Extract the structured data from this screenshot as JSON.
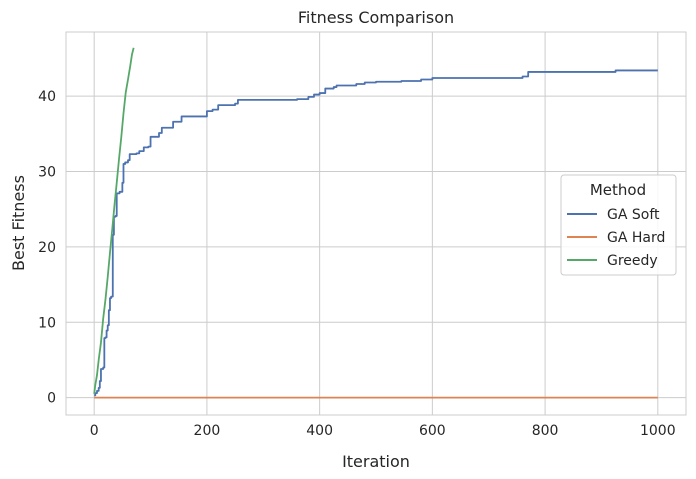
{
  "chart_data": {
    "type": "line",
    "title": "Fitness Comparison",
    "xlabel": "Iteration",
    "ylabel": "Best Fitness",
    "xlim": [
      -50,
      1050
    ],
    "ylim": [
      -2.3,
      48.5
    ],
    "xticks": [
      0,
      200,
      400,
      600,
      800,
      1000
    ],
    "yticks": [
      0,
      10,
      20,
      30,
      40
    ],
    "grid": true,
    "legend": {
      "title": "Method",
      "placement": "center-right"
    },
    "series": [
      {
        "name": "GA Soft",
        "color": "#4c72b0",
        "step": true,
        "points": [
          [
            0,
            0.3
          ],
          [
            2,
            0.6
          ],
          [
            5,
            0.9
          ],
          [
            8,
            1.3
          ],
          [
            10,
            2.2
          ],
          [
            12,
            3.8
          ],
          [
            16,
            4.0
          ],
          [
            18,
            7.9
          ],
          [
            20,
            8.0
          ],
          [
            22,
            8.9
          ],
          [
            24,
            9.6
          ],
          [
            26,
            11.6
          ],
          [
            28,
            13.2
          ],
          [
            30,
            13.4
          ],
          [
            33,
            21.6
          ],
          [
            35,
            24.0
          ],
          [
            38,
            24.1
          ],
          [
            40,
            27.1
          ],
          [
            45,
            27.3
          ],
          [
            50,
            28.5
          ],
          [
            52,
            31.0
          ],
          [
            55,
            31.2
          ],
          [
            60,
            31.5
          ],
          [
            63,
            32.3
          ],
          [
            75,
            32.4
          ],
          [
            80,
            32.7
          ],
          [
            88,
            33.2
          ],
          [
            96,
            33.3
          ],
          [
            100,
            34.6
          ],
          [
            115,
            35.1
          ],
          [
            120,
            35.8
          ],
          [
            140,
            36.6
          ],
          [
            155,
            37.3
          ],
          [
            200,
            38.0
          ],
          [
            210,
            38.2
          ],
          [
            220,
            38.8
          ],
          [
            250,
            39.0
          ],
          [
            255,
            39.5
          ],
          [
            360,
            39.6
          ],
          [
            380,
            39.9
          ],
          [
            390,
            40.2
          ],
          [
            400,
            40.4
          ],
          [
            410,
            41.0
          ],
          [
            425,
            41.2
          ],
          [
            430,
            41.4
          ],
          [
            465,
            41.6
          ],
          [
            480,
            41.8
          ],
          [
            500,
            41.9
          ],
          [
            545,
            42.0
          ],
          [
            580,
            42.2
          ],
          [
            600,
            42.4
          ],
          [
            680,
            42.4
          ],
          [
            760,
            42.6
          ],
          [
            770,
            43.2
          ],
          [
            925,
            43.4
          ],
          [
            1000,
            43.4
          ]
        ]
      },
      {
        "name": "GA Hard",
        "color": "#dd8452",
        "step": false,
        "points": [
          [
            0,
            0
          ],
          [
            1000,
            0
          ]
        ]
      },
      {
        "name": "Greedy",
        "color": "#55a868",
        "step": false,
        "points": [
          [
            0,
            0.5
          ],
          [
            2,
            1.7
          ],
          [
            5,
            3.0
          ],
          [
            8,
            5.0
          ],
          [
            12,
            7.3
          ],
          [
            16,
            10.5
          ],
          [
            20,
            13.0
          ],
          [
            24,
            16.0
          ],
          [
            28,
            19.2
          ],
          [
            32,
            22.3
          ],
          [
            36,
            25.5
          ],
          [
            40,
            28.5
          ],
          [
            44,
            31.6
          ],
          [
            48,
            34.5
          ],
          [
            52,
            37.7
          ],
          [
            56,
            40.5
          ],
          [
            60,
            42.2
          ],
          [
            64,
            44.0
          ],
          [
            67,
            45.5
          ],
          [
            70,
            46.4
          ]
        ]
      }
    ]
  }
}
